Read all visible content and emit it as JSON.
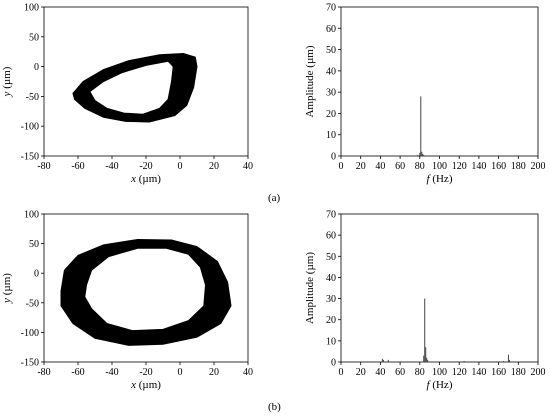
{
  "panel_labels": [
    "(a)",
    "(b)"
  ],
  "chart_data": [
    {
      "type": "scatter",
      "panel": "(a)",
      "subplot": "orbit",
      "title": "",
      "xlabel": "x (µm)",
      "ylabel": "y (µm)",
      "xlim": [
        -80,
        40
      ],
      "ylim": [
        -150,
        100
      ],
      "xticks": [
        -80,
        -60,
        -40,
        -20,
        0,
        20,
        40
      ],
      "yticks": [
        -150,
        -100,
        -50,
        0,
        50,
        100
      ],
      "grid": false,
      "orbit": {
        "outer": [
          [
            -63,
            -45
          ],
          [
            -57,
            -25
          ],
          [
            -45,
            -5
          ],
          [
            -30,
            10
          ],
          [
            -12,
            20
          ],
          [
            2,
            22
          ],
          [
            9,
            16
          ],
          [
            10,
            0
          ],
          [
            8,
            -35
          ],
          [
            4,
            -65
          ],
          [
            -3,
            -82
          ],
          [
            -18,
            -93
          ],
          [
            -32,
            -92
          ],
          [
            -45,
            -85
          ],
          [
            -56,
            -70
          ],
          [
            -62,
            -55
          ]
        ],
        "inner": [
          [
            -53,
            -42
          ],
          [
            -45,
            -25
          ],
          [
            -34,
            -10
          ],
          [
            -20,
            2
          ],
          [
            -7,
            9
          ],
          [
            -4,
            0
          ],
          [
            -5,
            -25
          ],
          [
            -7,
            -55
          ],
          [
            -12,
            -70
          ],
          [
            -22,
            -80
          ],
          [
            -33,
            -78
          ],
          [
            -43,
            -70
          ],
          [
            -50,
            -57
          ]
        ]
      }
    },
    {
      "type": "bar",
      "panel": "(a)",
      "subplot": "spectrum",
      "title": "",
      "xlabel": "f (Hz)",
      "ylabel": "Amplitude (µm)",
      "xlim": [
        0,
        200
      ],
      "ylim": [
        0,
        70
      ],
      "xticks": [
        0,
        20,
        40,
        60,
        80,
        100,
        120,
        140,
        160,
        180,
        200
      ],
      "yticks": [
        0,
        10,
        20,
        30,
        40,
        50,
        60,
        70
      ],
      "grid": false,
      "x": [
        78,
        80,
        81,
        82,
        83,
        84
      ],
      "values": [
        0.5,
        1.5,
        28,
        2,
        1,
        0.5
      ]
    },
    {
      "type": "scatter",
      "panel": "(b)",
      "subplot": "orbit",
      "title": "",
      "xlabel": "x (µm)",
      "ylabel": "y (µm)",
      "xlim": [
        -80,
        40
      ],
      "ylim": [
        -150,
        100
      ],
      "xticks": [
        -80,
        -60,
        -40,
        -20,
        0,
        20,
        40
      ],
      "yticks": [
        -150,
        -100,
        -50,
        0,
        50,
        100
      ],
      "grid": false,
      "orbit": {
        "outer": [
          [
            -70,
            -30
          ],
          [
            -68,
            5
          ],
          [
            -60,
            30
          ],
          [
            -45,
            48
          ],
          [
            -25,
            57
          ],
          [
            -5,
            56
          ],
          [
            10,
            45
          ],
          [
            22,
            20
          ],
          [
            28,
            -15
          ],
          [
            30,
            -55
          ],
          [
            24,
            -85
          ],
          [
            10,
            -108
          ],
          [
            -10,
            -120
          ],
          [
            -30,
            -122
          ],
          [
            -50,
            -110
          ],
          [
            -63,
            -85
          ],
          [
            -70,
            -55
          ]
        ],
        "inner": [
          [
            -55,
            -20
          ],
          [
            -52,
            5
          ],
          [
            -42,
            28
          ],
          [
            -25,
            42
          ],
          [
            -8,
            42
          ],
          [
            5,
            32
          ],
          [
            12,
            10
          ],
          [
            15,
            -20
          ],
          [
            14,
            -55
          ],
          [
            5,
            -80
          ],
          [
            -10,
            -95
          ],
          [
            -28,
            -97
          ],
          [
            -43,
            -85
          ],
          [
            -52,
            -60
          ],
          [
            -56,
            -40
          ]
        ]
      }
    },
    {
      "type": "bar",
      "panel": "(b)",
      "subplot": "spectrum",
      "title": "",
      "xlabel": "f (Hz)",
      "ylabel": "Amplitude (µm)",
      "xlim": [
        0,
        200
      ],
      "ylim": [
        0,
        70
      ],
      "xticks": [
        0,
        20,
        40,
        60,
        80,
        100,
        120,
        140,
        160,
        180,
        200
      ],
      "yticks": [
        0,
        10,
        20,
        30,
        40,
        50,
        60,
        70
      ],
      "grid": false,
      "x": [
        42,
        43,
        48,
        84,
        85,
        86,
        87,
        88,
        125,
        165,
        170,
        171
      ],
      "values": [
        1.5,
        1,
        1,
        3,
        30,
        7,
        2,
        1,
        0.5,
        0.5,
        3.5,
        1
      ]
    }
  ]
}
